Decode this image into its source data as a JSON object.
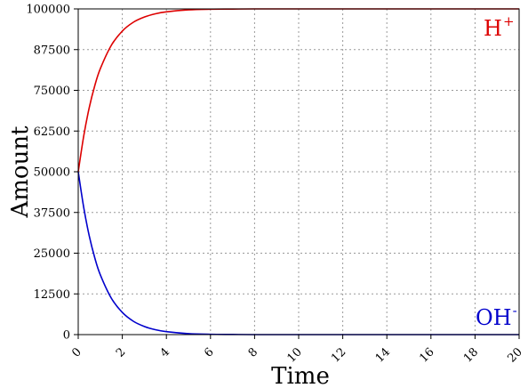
{
  "chart_data": {
    "type": "line",
    "xlabel": "Time",
    "ylabel": "Amount",
    "xlim": [
      0,
      20
    ],
    "ylim": [
      0,
      100000
    ],
    "x_ticks": [
      0,
      2,
      4,
      6,
      8,
      10,
      12,
      14,
      16,
      18,
      20
    ],
    "y_ticks": [
      0,
      12500,
      25000,
      37500,
      50000,
      62500,
      75000,
      87500,
      100000
    ],
    "grid": true,
    "series": [
      {
        "name": "H+",
        "label_main": "H",
        "label_sup": "+",
        "color": "#dd0000",
        "x": [
          0,
          0.25,
          0.5,
          0.75,
          1,
          1.5,
          2,
          2.5,
          3,
          3.5,
          4,
          5,
          6,
          7,
          8,
          10,
          12,
          14,
          16,
          18,
          20
        ],
        "y": [
          50000,
          61000,
          69700,
          76400,
          81600,
          88800,
          93200,
          95900,
          97500,
          98500,
          99100,
          99700,
          99900,
          99950,
          100000,
          100000,
          100000,
          100000,
          100000,
          100000,
          100000
        ]
      },
      {
        "name": "OH-",
        "label_main": "OH",
        "label_sup": "-",
        "color": "#0000cc",
        "x": [
          0,
          0.25,
          0.5,
          0.75,
          1,
          1.5,
          2,
          2.5,
          3,
          3.5,
          4,
          5,
          6,
          7,
          8,
          10,
          12,
          14,
          16,
          18,
          20
        ],
        "y": [
          50000,
          39000,
          30300,
          23600,
          18400,
          11200,
          6800,
          4100,
          2500,
          1500,
          900,
          300,
          100,
          50,
          0,
          0,
          0,
          0,
          0,
          0,
          0
        ]
      }
    ]
  }
}
